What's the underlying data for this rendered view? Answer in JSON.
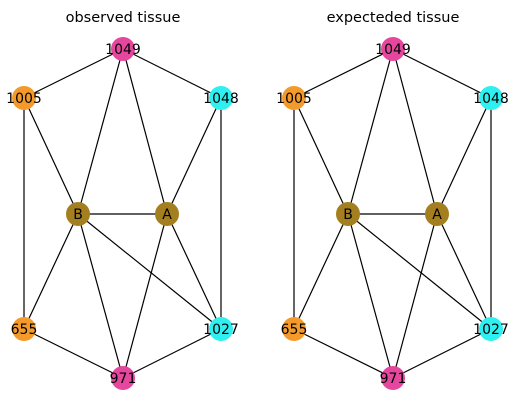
{
  "colors": {
    "magenta": "#e6479e",
    "orange": "#f39a2a",
    "cyan": "#2ff0f0",
    "olive": "#a47f20",
    "edge": "#000000"
  },
  "panels": [
    {
      "title": "observed tissue",
      "nodes": [
        {
          "id": "1049",
          "label": "1049",
          "color": "magenta"
        },
        {
          "id": "1005",
          "label": "1005",
          "color": "orange"
        },
        {
          "id": "1048",
          "label": "1048",
          "color": "cyan"
        },
        {
          "id": "B",
          "label": "B",
          "color": "olive"
        },
        {
          "id": "A",
          "label": "A",
          "color": "olive"
        },
        {
          "id": "655",
          "label": "655",
          "color": "orange"
        },
        {
          "id": "1027",
          "label": "1027",
          "color": "cyan"
        },
        {
          "id": "971",
          "label": "971",
          "color": "magenta"
        }
      ],
      "edges": [
        [
          "1049",
          "1005"
        ],
        [
          "1049",
          "1048"
        ],
        [
          "1049",
          "B"
        ],
        [
          "1049",
          "A"
        ],
        [
          "1005",
          "B"
        ],
        [
          "1005",
          "655"
        ],
        [
          "1048",
          "A"
        ],
        [
          "1048",
          "1027"
        ],
        [
          "B",
          "A"
        ],
        [
          "B",
          "655"
        ],
        [
          "B",
          "971"
        ],
        [
          "B",
          "1027"
        ],
        [
          "A",
          "971"
        ],
        [
          "A",
          "1027"
        ],
        [
          "655",
          "971"
        ],
        [
          "1027",
          "971"
        ]
      ]
    },
    {
      "title": "expecteded tissue",
      "nodes": [
        {
          "id": "1049",
          "label": "1049",
          "color": "magenta"
        },
        {
          "id": "1005",
          "label": "1005",
          "color": "orange"
        },
        {
          "id": "1048",
          "label": "1048",
          "color": "cyan"
        },
        {
          "id": "B",
          "label": "B",
          "color": "olive"
        },
        {
          "id": "A",
          "label": "A",
          "color": "olive"
        },
        {
          "id": "655",
          "label": "655",
          "color": "orange"
        },
        {
          "id": "1027",
          "label": "1027",
          "color": "cyan"
        },
        {
          "id": "971",
          "label": "971",
          "color": "magenta"
        }
      ],
      "edges": [
        [
          "1049",
          "1005"
        ],
        [
          "1049",
          "1048"
        ],
        [
          "1049",
          "B"
        ],
        [
          "1049",
          "A"
        ],
        [
          "1005",
          "B"
        ],
        [
          "1005",
          "655"
        ],
        [
          "1048",
          "A"
        ],
        [
          "1048",
          "1027"
        ],
        [
          "B",
          "A"
        ],
        [
          "B",
          "655"
        ],
        [
          "B",
          "971"
        ],
        [
          "B",
          "1027"
        ],
        [
          "A",
          "971"
        ],
        [
          "A",
          "1027"
        ],
        [
          "655",
          "971"
        ],
        [
          "1027",
          "971"
        ]
      ]
    }
  ]
}
